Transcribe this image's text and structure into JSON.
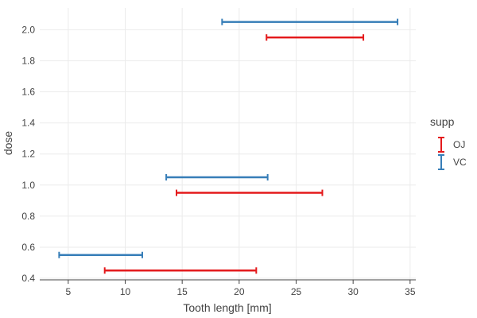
{
  "chart_data": {
    "type": "errorbar",
    "xlabel": "Tooth length [mm]",
    "ylabel": "dose",
    "xlim": [
      2.5,
      35.5
    ],
    "ylim": [
      0.39,
      2.14
    ],
    "xticks": [
      5,
      10,
      15,
      20,
      25,
      30,
      35
    ],
    "yticks": [
      0.4,
      0.6,
      0.8,
      1.0,
      1.2,
      1.4,
      1.6,
      1.8,
      2.0
    ],
    "ytick_labels": [
      "0.4",
      "0.6",
      "0.8",
      "1.0",
      "1.2",
      "1.4",
      "1.6",
      "1.8",
      "2.0"
    ],
    "grid": true,
    "legend": {
      "title": "supp",
      "placement": "right"
    },
    "series": [
      {
        "name": "OJ",
        "color": "#E41A1C",
        "points": [
          {
            "dose": 0.45,
            "low": 8.2,
            "high": 21.5
          },
          {
            "dose": 0.95,
            "low": 14.5,
            "high": 27.3
          },
          {
            "dose": 1.95,
            "low": 22.4,
            "high": 30.9
          }
        ]
      },
      {
        "name": "VC",
        "color": "#377EB8",
        "points": [
          {
            "dose": 0.55,
            "low": 4.2,
            "high": 11.5
          },
          {
            "dose": 1.05,
            "low": 13.6,
            "high": 22.5
          },
          {
            "dose": 2.05,
            "low": 18.5,
            "high": 33.9
          }
        ]
      }
    ]
  }
}
